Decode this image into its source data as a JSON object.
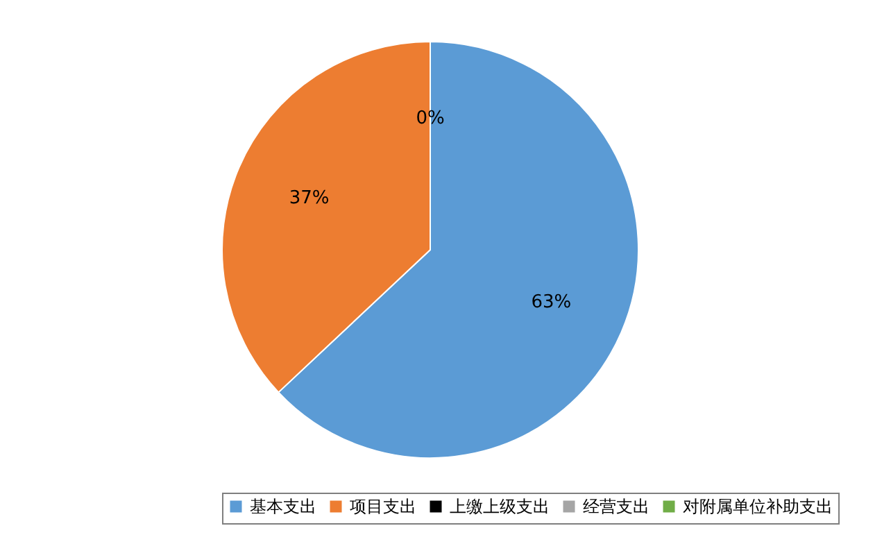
{
  "chart_data": {
    "type": "pie",
    "categories": [
      "基本支出",
      "项目支出",
      "上缴上级支出",
      "经营支出",
      "对附属单位补助支出"
    ],
    "values": [
      63,
      37,
      0,
      0,
      0
    ],
    "colors": [
      "#5b9bd5",
      "#ed7d31",
      "#000000",
      "#a5a5a5",
      "#70ad47"
    ],
    "value_labels": [
      "63%",
      "37%",
      "0%",
      null,
      null
    ],
    "legend": "bottom"
  }
}
